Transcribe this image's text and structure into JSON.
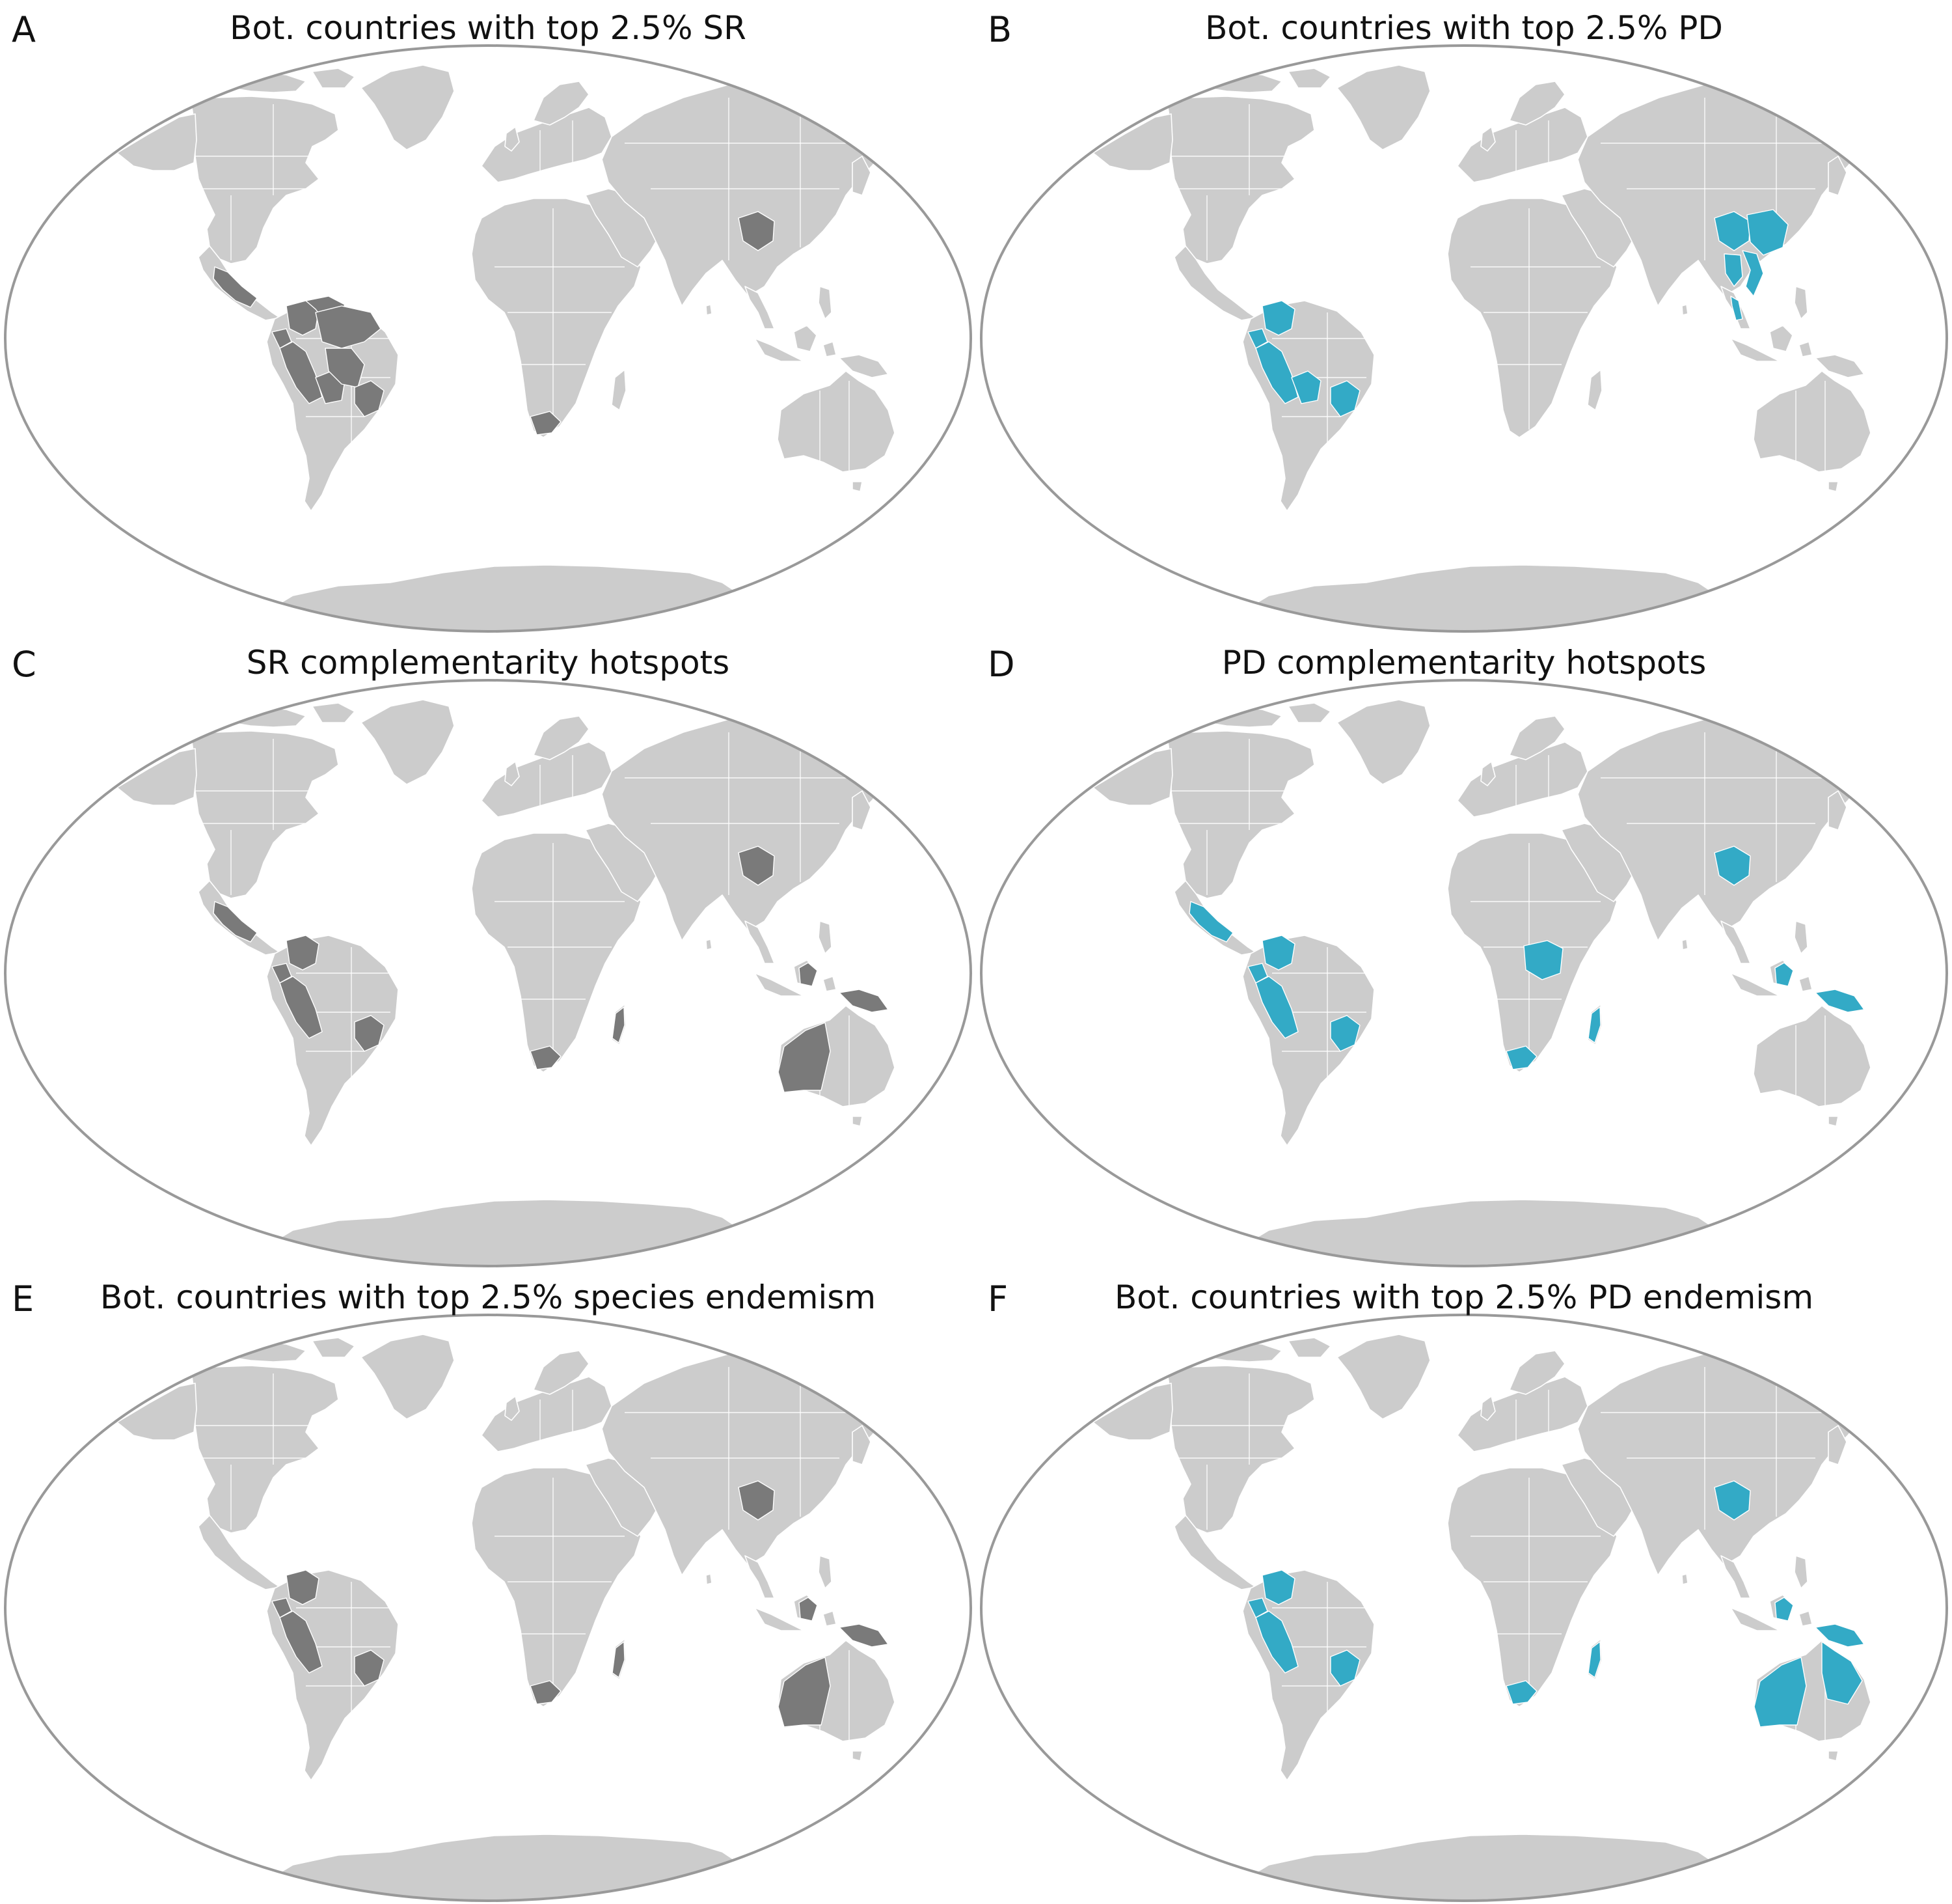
{
  "colors": {
    "ocean": "#ffffff",
    "land": "#cccccc",
    "frame": "#999999",
    "highlight_sr": "#7a7a7a",
    "highlight_pd": "#33aac6"
  },
  "panels": [
    {
      "letter": "A",
      "title": "Bot. countries with top 2.5% SR",
      "highlight_color": "#7a7a7a",
      "highlighted_regions": [
        "mexico-south",
        "colombia",
        "venezuela",
        "ecuador",
        "peru",
        "brazil-north",
        "bolivia",
        "brazil-west-central",
        "brazil-southeast",
        "south-africa-cape",
        "china-south-central"
      ]
    },
    {
      "letter": "B",
      "title": "Bot. countries with top 2.5% PD",
      "highlight_color": "#33aac6",
      "highlighted_regions": [
        "colombia",
        "ecuador",
        "peru",
        "bolivia",
        "brazil-southeast",
        "china-south-central",
        "china-southeast",
        "vietnam",
        "thailand",
        "malaya"
      ]
    },
    {
      "letter": "C",
      "title": "SR complementarity hotspots",
      "highlight_color": "#7a7a7a",
      "highlighted_regions": [
        "mexico-south",
        "colombia",
        "ecuador",
        "peru",
        "brazil-southeast",
        "south-africa-cape",
        "madagascar",
        "china-south-central",
        "borneo",
        "new-guinea",
        "western-australia"
      ]
    },
    {
      "letter": "D",
      "title": "PD complementarity hotspots",
      "highlight_color": "#33aac6",
      "highlighted_regions": [
        "mexico-south",
        "colombia",
        "ecuador",
        "peru",
        "brazil-southeast",
        "congo",
        "south-africa-cape",
        "madagascar",
        "china-south-central",
        "borneo",
        "new-guinea"
      ]
    },
    {
      "letter": "E",
      "title": "Bot. countries with top 2.5% species endemism",
      "highlight_color": "#7a7a7a",
      "highlighted_regions": [
        "colombia",
        "ecuador",
        "peru",
        "brazil-southeast",
        "south-africa-cape",
        "madagascar",
        "china-south-central",
        "borneo",
        "new-guinea",
        "western-australia"
      ]
    },
    {
      "letter": "F",
      "title": "Bot. countries with top 2.5% PD endemism",
      "highlight_color": "#33aac6",
      "highlighted_regions": [
        "colombia",
        "ecuador",
        "peru",
        "brazil-southeast",
        "south-africa-cape",
        "madagascar",
        "china-south-central",
        "borneo",
        "new-guinea",
        "western-australia",
        "queensland"
      ]
    }
  ]
}
